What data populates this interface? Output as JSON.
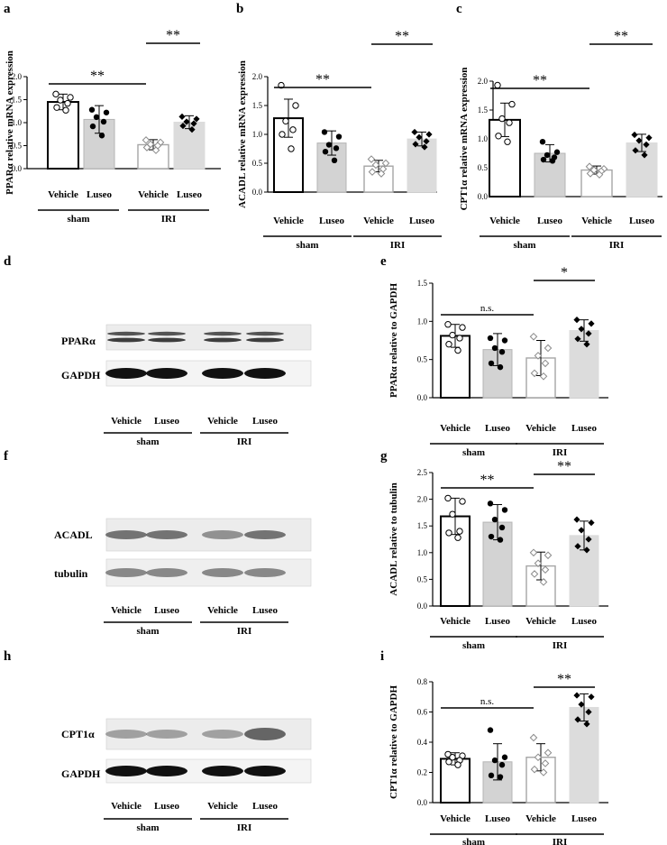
{
  "panel_letters": {
    "a": "a",
    "b": "b",
    "c": "c",
    "d": "d",
    "e": "e",
    "f": "f",
    "g": "g",
    "h": "h",
    "i": "i"
  },
  "colors": {
    "sham_vehicle": "#ffffff",
    "sham_luseo": "#d3d3d3",
    "iri_vehicle": "#ffffff",
    "iri_luseo": "#dcdcdc",
    "iri_vehicle_edge": "#a6a6a6"
  },
  "group_labels": {
    "vehicle": "Vehicle",
    "luseo": "Luseo",
    "sham": "sham",
    "iri": "IRI"
  },
  "chart_data": [
    {
      "id": "a",
      "type": "bar",
      "ylabel": "PPARα relative mRNA expression",
      "ylim": [
        0,
        2.0
      ],
      "yticks": [
        "0.0",
        "0.5",
        "1.0",
        "1.5",
        "2.0"
      ],
      "categories": [
        "Vehicle",
        "Luseo",
        "Vehicle",
        "Luseo"
      ],
      "groups": [
        "sham",
        "IRI"
      ],
      "values": [
        1.45,
        1.07,
        0.52,
        1.01
      ],
      "errors": [
        0.17,
        0.3,
        0.11,
        0.14
      ],
      "points": [
        [
          1.62,
          1.55,
          1.49,
          1.42,
          1.33,
          1.27
        ],
        [
          1.28,
          1.22,
          1.12,
          1.02,
          0.92,
          0.72
        ],
        [
          0.62,
          0.57,
          0.53,
          0.5,
          0.46,
          0.4
        ],
        [
          1.13,
          1.08,
          1.02,
          0.98,
          0.93,
          0.85
        ]
      ],
      "sig": [
        {
          "from": 0,
          "to": 2,
          "label": "**"
        },
        {
          "from": 2,
          "to": 3,
          "label": "**"
        }
      ]
    },
    {
      "id": "b",
      "type": "bar",
      "ylabel": "ACADL relative mRNA expression",
      "ylim": [
        0,
        2.0
      ],
      "yticks": [
        "0.0",
        "0.5",
        "1.0",
        "1.5",
        "2.0"
      ],
      "categories": [
        "Vehicle",
        "Luseo",
        "Vehicle",
        "Luseo"
      ],
      "groups": [
        "sham",
        "IRI"
      ],
      "values": [
        1.28,
        0.85,
        0.45,
        0.92
      ],
      "errors": [
        0.33,
        0.21,
        0.1,
        0.12
      ],
      "points": [
        [
          1.85,
          1.5,
          1.23,
          1.08,
          1.0,
          0.75
        ],
        [
          1.04,
          0.96,
          0.82,
          0.76,
          0.7,
          0.55
        ],
        [
          0.57,
          0.5,
          0.47,
          0.4,
          0.35,
          0.32
        ],
        [
          1.04,
          1.0,
          0.95,
          0.88,
          0.83,
          0.78
        ]
      ],
      "sig": [
        {
          "from": 0,
          "to": 2,
          "label": "**"
        },
        {
          "from": 2,
          "to": 3,
          "label": "**"
        }
      ]
    },
    {
      "id": "c",
      "type": "bar",
      "ylabel": "CPT1α relative mRNA expression",
      "ylim": [
        0,
        2.0
      ],
      "yticks": [
        "0.0",
        "0.5",
        "1.0",
        "1.5",
        "2.0"
      ],
      "categories": [
        "Vehicle",
        "Luseo",
        "Vehicle",
        "Luseo"
      ],
      "groups": [
        "sham",
        "IRI"
      ],
      "values": [
        1.33,
        0.75,
        0.46,
        0.93
      ],
      "errors": [
        0.29,
        0.15,
        0.07,
        0.15
      ],
      "points": [
        [
          1.93,
          1.6,
          1.35,
          1.28,
          1.05,
          0.95
        ],
        [
          0.95,
          0.77,
          0.72,
          0.68,
          0.64,
          0.62
        ],
        [
          0.52,
          0.48,
          0.46,
          0.44,
          0.4,
          0.38
        ],
        [
          1.07,
          1.02,
          0.97,
          0.9,
          0.8,
          0.72
        ]
      ],
      "sig": [
        {
          "from": 0,
          "to": 2,
          "label": "**"
        },
        {
          "from": 2,
          "to": 3,
          "label": "**"
        }
      ]
    },
    {
      "id": "e",
      "type": "bar",
      "ylabel": "PPARα relative to GAPDH",
      "ylim": [
        0,
        1.5
      ],
      "yticks": [
        "0.0",
        "0.5",
        "1.0",
        "1.5"
      ],
      "categories": [
        "Vehicle",
        "Luseo",
        "Vehicle",
        "Luseo"
      ],
      "groups": [
        "sham",
        "IRI"
      ],
      "values": [
        0.81,
        0.63,
        0.52,
        0.88
      ],
      "errors": [
        0.15,
        0.21,
        0.23,
        0.14
      ],
      "points": [
        [
          0.96,
          0.92,
          0.82,
          0.78,
          0.7,
          0.62
        ],
        [
          0.78,
          0.75,
          0.65,
          0.6,
          0.45,
          0.4
        ],
        [
          0.8,
          0.65,
          0.55,
          0.45,
          0.32,
          0.28
        ],
        [
          1.02,
          0.97,
          0.9,
          0.84,
          0.77,
          0.7
        ]
      ],
      "sig": [
        {
          "from": 0,
          "to": 2,
          "label": "n.s."
        },
        {
          "from": 2,
          "to": 3,
          "label": "*"
        }
      ]
    },
    {
      "id": "g",
      "type": "bar",
      "ylabel": "ACADL relative to tubulin",
      "ylim": [
        0,
        2.5
      ],
      "yticks": [
        "0.0",
        "0.5",
        "1.0",
        "1.5",
        "2.0",
        "2.5"
      ],
      "categories": [
        "Vehicle",
        "Luseo",
        "Vehicle",
        "Luseo"
      ],
      "groups": [
        "sham",
        "IRI"
      ],
      "values": [
        1.68,
        1.57,
        0.75,
        1.32
      ],
      "errors": [
        0.34,
        0.33,
        0.26,
        0.27
      ],
      "points": [
        [
          2.02,
          1.96,
          1.72,
          1.4,
          1.37,
          1.28
        ],
        [
          1.92,
          1.8,
          1.62,
          1.47,
          1.3,
          1.24
        ],
        [
          1.0,
          0.95,
          0.8,
          0.68,
          0.6,
          0.45
        ],
        [
          1.62,
          1.56,
          1.42,
          1.25,
          1.12,
          1.05
        ]
      ],
      "sig": [
        {
          "from": 0,
          "to": 2,
          "label": "**"
        },
        {
          "from": 2,
          "to": 3,
          "label": "**"
        }
      ]
    },
    {
      "id": "i",
      "type": "bar",
      "ylabel": "CPT1α relative to GAPDH",
      "ylim": [
        0,
        0.8
      ],
      "yticks": [
        "0.0",
        "0.2",
        "0.4",
        "0.6",
        "0.8"
      ],
      "categories": [
        "Vehicle",
        "Luseo",
        "Vehicle",
        "Luseo"
      ],
      "groups": [
        "sham",
        "IRI"
      ],
      "values": [
        0.29,
        0.27,
        0.3,
        0.63
      ],
      "errors": [
        0.04,
        0.12,
        0.09,
        0.09
      ],
      "points": [
        [
          0.32,
          0.31,
          0.3,
          0.28,
          0.27,
          0.25
        ],
        [
          0.48,
          0.3,
          0.28,
          0.25,
          0.18,
          0.17
        ],
        [
          0.43,
          0.33,
          0.3,
          0.26,
          0.22,
          0.2
        ],
        [
          0.71,
          0.7,
          0.65,
          0.6,
          0.55,
          0.52
        ]
      ],
      "sig": [
        {
          "from": 0,
          "to": 2,
          "label": "n.s."
        },
        {
          "from": 2,
          "to": 3,
          "label": "**"
        }
      ]
    }
  ],
  "blots": {
    "d": {
      "bands": [
        {
          "label": "PPARα",
          "kind": "ppar"
        },
        {
          "label": "GAPDH",
          "kind": "gapdh"
        }
      ]
    },
    "f": {
      "bands": [
        {
          "label": "ACADL",
          "kind": "acadl"
        },
        {
          "label": "tubulin",
          "kind": "tubulin"
        }
      ]
    },
    "h": {
      "bands": [
        {
          "label": "CPT1α",
          "kind": "cpt"
        },
        {
          "label": "GAPDH",
          "kind": "gapdh"
        }
      ]
    }
  }
}
